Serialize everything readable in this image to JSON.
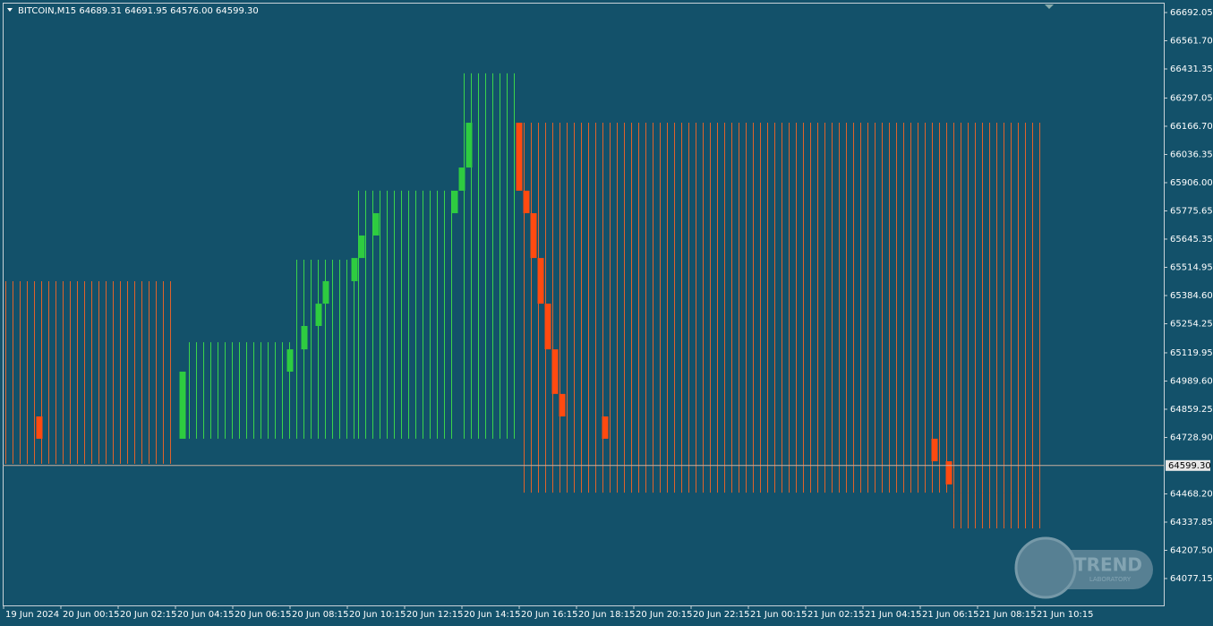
{
  "chart_data": {
    "type": "renko",
    "title": "BITCOIN,M15  64689.31 64691.95 64576.00 64599.30",
    "ylim": [
      63953,
      66750
    ],
    "yticks": [
      {
        "value": 66692.05,
        "label": "66692.05"
      },
      {
        "value": 66561.7,
        "label": "66561.70"
      },
      {
        "value": 66431.35,
        "label": "66431.35"
      },
      {
        "value": 66297.05,
        "label": "66297.05"
      },
      {
        "value": 66166.7,
        "label": "66166.70"
      },
      {
        "value": 66036.35,
        "label": "66036.35"
      },
      {
        "value": 65906,
        "label": "65906.00"
      },
      {
        "value": 65775.65,
        "label": "65775.65"
      },
      {
        "value": 65645.35,
        "label": "65645.35"
      },
      {
        "value": 65514.95,
        "label": "65514.95"
      },
      {
        "value": 65384.6,
        "label": "65384.60"
      },
      {
        "value": 65254.25,
        "label": "65254.25"
      },
      {
        "value": 65119.95,
        "label": "65119.95"
      },
      {
        "value": 64989.6,
        "label": "64989.60"
      },
      {
        "value": 64859.25,
        "label": "64859.25"
      },
      {
        "value": 64728.9,
        "label": "64728.90"
      },
      {
        "value": 64468.2,
        "label": "64468.20"
      },
      {
        "value": 64337.85,
        "label": "64337.85"
      },
      {
        "value": 64207.5,
        "label": "64207.50"
      },
      {
        "value": 64077.15,
        "label": "64077.15"
      }
    ],
    "xlim": [
      -1.875,
      38.75
    ],
    "xticks": [
      {
        "value": -1.75,
        "label": "19 Jun 2024"
      },
      {
        "value": 0.25,
        "label": "20 Jun 00:15"
      },
      {
        "value": 2.25,
        "label": "20 Jun 02:15"
      },
      {
        "value": 4.25,
        "label": "20 Jun 04:15"
      },
      {
        "value": 6.25,
        "label": "20 Jun 06:15"
      },
      {
        "value": 8.25,
        "label": "20 Jun 08:15"
      },
      {
        "value": 10.25,
        "label": "20 Jun 10:15"
      },
      {
        "value": 12.25,
        "label": "20 Jun 12:15"
      },
      {
        "value": 14.25,
        "label": "20 Jun 14:15"
      },
      {
        "value": 16.25,
        "label": "20 Jun 16:15"
      },
      {
        "value": 18.25,
        "label": "20 Jun 18:15"
      },
      {
        "value": 20.25,
        "label": "20 Jun 20:15"
      },
      {
        "value": 22.25,
        "label": "20 Jun 22:15"
      },
      {
        "value": 24.25,
        "label": "21 Jun 00:15"
      },
      {
        "value": 26.25,
        "label": "21 Jun 02:15"
      },
      {
        "value": 28.25,
        "label": "21 Jun 04:15"
      },
      {
        "value": 30.25,
        "label": "21 Jun 06:15"
      },
      {
        "value": 32.25,
        "label": "21 Jun 08:15"
      },
      {
        "value": 34.25,
        "label": "21 Jun 10:15"
      }
    ],
    "up_color": "#2ecc40",
    "down_color": "#ff4a10",
    "bricks": [
      {
        "x": -0.5,
        "open": 64826,
        "close": 64723
      },
      {
        "x": 4.5,
        "open": 64723,
        "close": 65033
      },
      {
        "x": 8.25,
        "open": 65033,
        "close": 65136
      },
      {
        "x": 8.75,
        "open": 65136,
        "close": 65244
      },
      {
        "x": 9.25,
        "open": 65244,
        "close": 65347
      },
      {
        "x": 9.5,
        "open": 65347,
        "close": 65451
      },
      {
        "x": 10.5,
        "open": 65451,
        "close": 65558
      },
      {
        "x": 10.75,
        "open": 65558,
        "close": 65662
      },
      {
        "x": 11.25,
        "open": 65662,
        "close": 65765
      },
      {
        "x": 14,
        "open": 65765,
        "close": 65869
      },
      {
        "x": 14.25,
        "open": 65869,
        "close": 65976
      },
      {
        "x": 14.5,
        "open": 65976,
        "close": 66183
      },
      {
        "x": 16.25,
        "open": 66183,
        "close": 65869
      },
      {
        "x": 16.5,
        "open": 65869,
        "close": 65765
      },
      {
        "x": 16.75,
        "open": 65765,
        "close": 65558
      },
      {
        "x": 17,
        "open": 65558,
        "close": 65347
      },
      {
        "x": 17.25,
        "open": 65347,
        "close": 65136
      },
      {
        "x": 17.5,
        "open": 65136,
        "close": 64930
      },
      {
        "x": 17.75,
        "open": 64930,
        "close": 64826
      },
      {
        "x": 19.25,
        "open": 64826,
        "close": 64723
      },
      {
        "x": 30.75,
        "open": 64723,
        "close": 64619
      },
      {
        "x": 31.25,
        "open": 64619,
        "close": 64512
      }
    ],
    "zones": [
      {
        "x0": -1.7,
        "x1": 4.3,
        "low": 64607,
        "high": 65451,
        "color": "#e0622a"
      },
      {
        "x0": 4.7,
        "x1": 8.3,
        "low": 64723,
        "high": 65169,
        "color": "#3ad44a"
      },
      {
        "x0": 8.45,
        "x1": 10.6,
        "low": 64723,
        "high": 65550,
        "color": "#3ad44a"
      },
      {
        "x0": 10.6,
        "x1": 14.1,
        "low": 64723,
        "high": 65869,
        "color": "#3ad44a"
      },
      {
        "x0": 14.3,
        "x1": 16.1,
        "low": 64723,
        "high": 66411,
        "color": "#3ad44a"
      },
      {
        "x0": 16.4,
        "x1": 34.6,
        "low": 64474,
        "high": 66183,
        "color": "#e0622a"
      },
      {
        "x0": 31.4,
        "x1": 34.6,
        "low": 64309,
        "high": 64474,
        "color": "#e0622a"
      }
    ],
    "price_line": {
      "value": 64599.3,
      "label": "64599.30"
    },
    "watermark": {
      "title": "TREND",
      "subtitle": "LABORATORY"
    }
  }
}
